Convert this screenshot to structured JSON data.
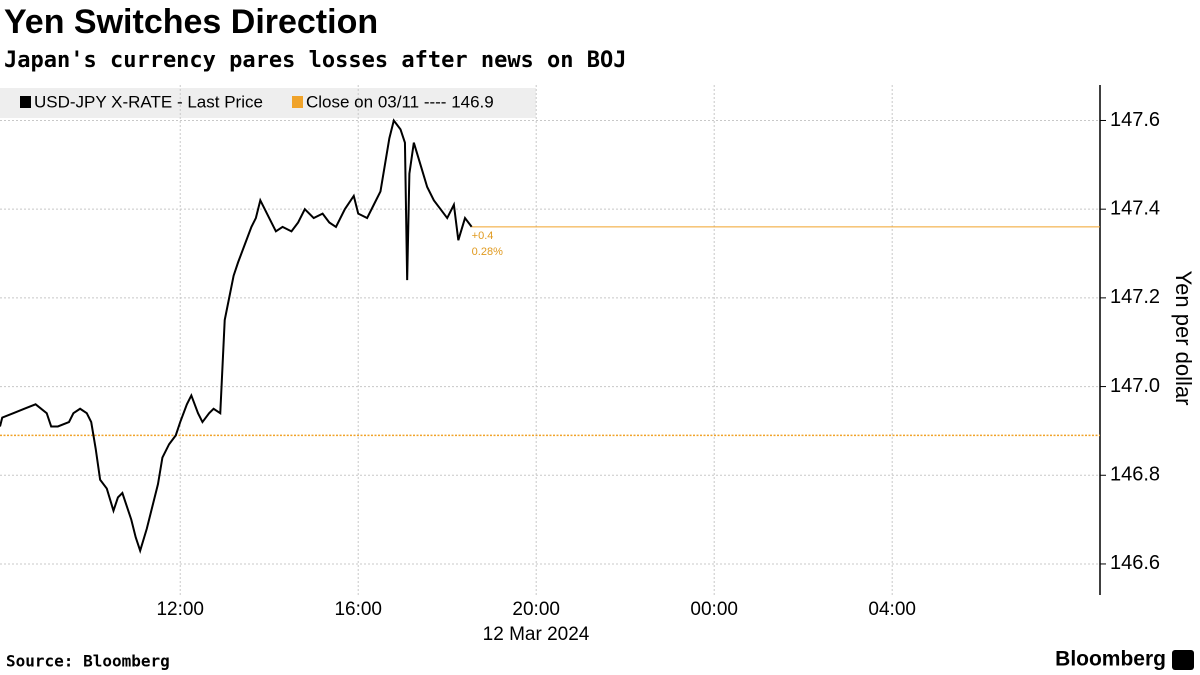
{
  "chart_data": {
    "type": "line",
    "title": "Yen Switches Direction",
    "subtitle": "Japan's currency pares losses after news on BOJ",
    "y_axis_label": "Yen per dollar",
    "date_label": "12 Mar 2024",
    "source": "Source: Bloomberg",
    "brand": "Bloomberg",
    "annotations": [
      "+0.4",
      "0.28%"
    ],
    "grid": true,
    "legend_position": "top-left",
    "x": [
      7.95,
      8.0,
      8.25,
      8.5,
      8.75,
      9.0,
      9.1,
      9.25,
      9.5,
      9.6,
      9.75,
      9.9,
      10.0,
      10.1,
      10.2,
      10.35,
      10.5,
      10.6,
      10.7,
      10.8,
      10.9,
      11.0,
      11.1,
      11.25,
      11.4,
      11.5,
      11.6,
      11.75,
      11.9,
      12.0,
      12.15,
      12.25,
      12.4,
      12.5,
      12.65,
      12.75,
      12.9,
      13.0,
      13.1,
      13.2,
      13.3,
      13.45,
      13.6,
      13.7,
      13.8,
      13.9,
      14.0,
      14.15,
      14.3,
      14.5,
      14.65,
      14.8,
      15.0,
      15.2,
      15.35,
      15.5,
      15.7,
      15.9,
      16.0,
      16.2,
      16.35,
      16.5,
      16.6,
      16.7,
      16.8,
      16.95,
      17.05,
      17.1,
      17.15,
      17.25,
      17.4,
      17.55,
      17.7,
      17.85,
      18.0,
      18.15,
      18.25,
      18.4,
      18.55
    ],
    "series": [
      {
        "name": "USD-JPY X-RATE - Last Price",
        "color": "#000000",
        "values": [
          146.91,
          146.93,
          146.94,
          146.95,
          146.96,
          146.94,
          146.91,
          146.91,
          146.92,
          146.94,
          146.95,
          146.94,
          146.92,
          146.86,
          146.79,
          146.77,
          146.72,
          146.75,
          146.76,
          146.73,
          146.7,
          146.66,
          146.63,
          146.68,
          146.74,
          146.78,
          146.84,
          146.87,
          146.89,
          146.92,
          146.96,
          146.98,
          146.94,
          146.92,
          146.94,
          146.95,
          146.94,
          147.15,
          147.2,
          147.25,
          147.28,
          147.32,
          147.36,
          147.38,
          147.42,
          147.4,
          147.38,
          147.35,
          147.36,
          147.35,
          147.37,
          147.4,
          147.38,
          147.39,
          147.37,
          147.36,
          147.4,
          147.43,
          147.39,
          147.38,
          147.41,
          147.44,
          147.5,
          147.56,
          147.6,
          147.58,
          147.55,
          147.24,
          147.48,
          147.55,
          147.5,
          147.45,
          147.42,
          147.4,
          147.38,
          147.41,
          147.33,
          147.38,
          147.36
        ]
      }
    ],
    "reference_lines": [
      {
        "name": "Close on 03/11 ---- 146.9",
        "value": 146.89,
        "color": "#f0a32a"
      }
    ],
    "xlim": [
      7.95,
      32.67
    ],
    "xticks": [
      {
        "value": 12,
        "label": "12:00"
      },
      {
        "value": 16,
        "label": "16:00"
      },
      {
        "value": 20,
        "label": "20:00"
      },
      {
        "value": 24,
        "label": "00:00"
      },
      {
        "value": 28,
        "label": "04:00"
      }
    ],
    "ylim": [
      146.53,
      147.68
    ],
    "yticks": [
      146.6,
      146.8,
      {
        "value": 147,
        "label": "147.0"
      },
      147.2,
      147.4,
      147.6
    ]
  }
}
